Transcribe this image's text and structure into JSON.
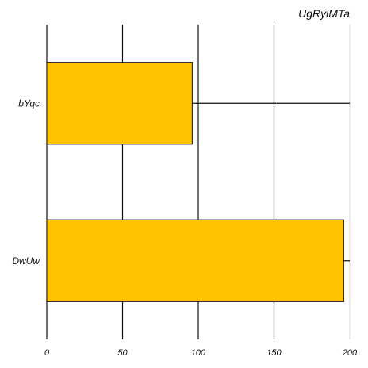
{
  "chart_data": {
    "type": "bar",
    "orientation": "horizontal",
    "title": "UgRyiMTa",
    "xlabel": "",
    "ylabel": "",
    "categories": [
      "bYqc",
      "DwUw"
    ],
    "values": [
      96,
      196
    ],
    "xlim": [
      0,
      200
    ],
    "x_ticks": [
      0,
      50,
      100,
      150,
      200
    ],
    "x_tick_labels": [
      "0",
      "50",
      "100",
      "150",
      "200"
    ],
    "grid": true,
    "bar_color": "#FFC300",
    "bar_edge_color": "#111111",
    "grid_color": "#111111"
  }
}
